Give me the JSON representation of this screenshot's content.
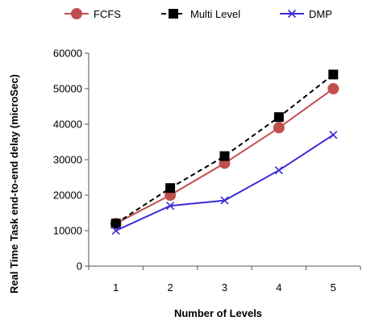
{
  "chart_data": {
    "type": "line",
    "title": "",
    "xlabel": "Number of Levels",
    "ylabel": "Real Time Task end-to-end delay (microSec)",
    "x": [
      1,
      2,
      3,
      4,
      5
    ],
    "ylim": [
      0,
      60000
    ],
    "yticks": [
      0,
      10000,
      20000,
      30000,
      40000,
      50000,
      60000
    ],
    "grid": false,
    "legend_position": "top",
    "series": [
      {
        "name": "FCFS",
        "values": [
          12000,
          20000,
          29000,
          39000,
          50000
        ],
        "color": "#c0504d",
        "marker": "circle",
        "dash": "solid"
      },
      {
        "name": "Multi Level",
        "values": [
          12000,
          22000,
          31000,
          42000,
          54000
        ],
        "color": "#000000",
        "marker": "square",
        "dash": "dashed"
      },
      {
        "name": "DMP",
        "values": [
          10000,
          17000,
          18500,
          27000,
          37000
        ],
        "color": "#3a2ad8",
        "marker": "x",
        "dash": "solid"
      }
    ]
  }
}
